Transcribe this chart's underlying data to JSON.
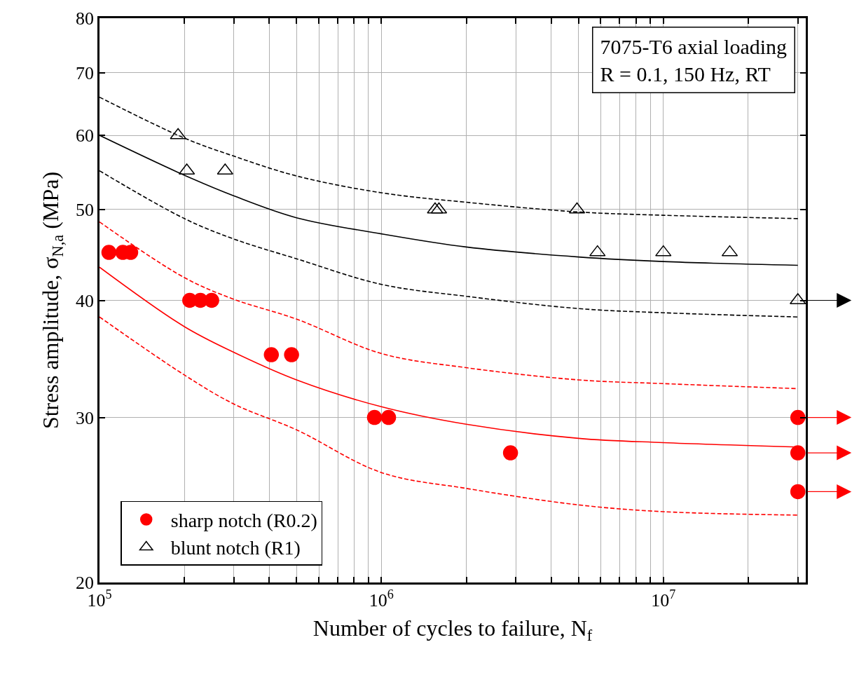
{
  "chart_data": {
    "type": "scatter",
    "xlabel": "Number of cycles to failure, N$_{f}$",
    "ylabel": "Stress amplitude, σ$_{N,a}$ (MPa)",
    "annotations": [
      "7075-T6 axial loading\nR = 0.1, 150 Hz, RT"
    ],
    "log": "xy",
    "xlim": [
      100000,
      32000000
    ],
    "ylim": [
      20,
      80
    ],
    "xticks": [
      {
        "value": 100000,
        "label": "10$^{5}$"
      },
      {
        "value": 200000,
        "label": null
      },
      {
        "value": 300000,
        "label": null
      },
      {
        "value": 400000,
        "label": null
      },
      {
        "value": 500000,
        "label": null
      },
      {
        "value": 600000,
        "label": null
      },
      {
        "value": 700000,
        "label": null
      },
      {
        "value": 800000,
        "label": null
      },
      {
        "value": 900000,
        "label": null
      },
      {
        "value": 1000000,
        "label": "10$^{6}$"
      },
      {
        "value": 2000000,
        "label": null
      },
      {
        "value": 3000000,
        "label": null
      },
      {
        "value": 4000000,
        "label": null
      },
      {
        "value": 5000000,
        "label": null
      },
      {
        "value": 6000000,
        "label": null
      },
      {
        "value": 7000000,
        "label": null
      },
      {
        "value": 8000000,
        "label": null
      },
      {
        "value": 9000000,
        "label": null
      },
      {
        "value": 10000000,
        "label": "10$^{7}$"
      },
      {
        "value": 20000000,
        "label": null
      },
      {
        "value": 30000000,
        "label": null
      }
    ],
    "yticks": [
      20,
      30,
      40,
      50,
      60,
      70,
      80
    ],
    "grid": true,
    "legend": "bottom left",
    "series": [
      {
        "name": "sharp notch (R0.2)",
        "marker": "circle",
        "color": "#ff0000",
        "x": [
          108000,
          121000,
          129000,
          209000,
          228000,
          250000,
          407000,
          480000,
          945000,
          1060000,
          2870000,
          30000000,
          30000000,
          30000000
        ],
        "values": [
          45,
          45,
          45,
          40,
          40,
          40,
          35,
          35,
          30,
          30,
          27.5,
          30,
          27.5,
          25
        ]
      },
      {
        "name": "blunt notch (R1)",
        "marker": "triangle",
        "color": "#000000",
        "x": [
          190000,
          204000,
          279000,
          1550000,
          1600000,
          4940000,
          5840000,
          10000000,
          17200000,
          30000000
        ],
        "values": [
          60,
          55,
          55,
          50,
          50,
          50,
          45,
          45,
          45,
          40
        ]
      },
      {
        "type": "line",
        "line_style": "solid",
        "color": "#000000",
        "x": [
          100000,
          200000,
          300000,
          500000,
          1000000,
          2000000,
          5000000,
          10000000,
          30000000
        ],
        "values": [
          60,
          54.4,
          51.7,
          49.0,
          47.1,
          45.6,
          44.5,
          44.0,
          43.6
        ]
      },
      {
        "type": "line",
        "line_style": "dashed",
        "color": "#000000",
        "x": [
          100000,
          200000,
          300000,
          500000,
          1000000,
          2000000,
          5000000,
          10000000,
          30000000
        ],
        "values": [
          65.9,
          59.6,
          57.0,
          54.3,
          52.1,
          50.9,
          49.7,
          49.3,
          48.9
        ]
      },
      {
        "type": "line",
        "line_style": "dashed",
        "color": "#000000",
        "x": [
          100000,
          200000,
          300000,
          500000,
          1000000,
          2000000,
          5000000,
          10000000,
          30000000
        ],
        "values": [
          55.0,
          48.9,
          46.5,
          44.3,
          41.6,
          40.4,
          39.2,
          38.8,
          38.4
        ]
      },
      {
        "type": "line",
        "line_style": "solid",
        "color": "#ff0000",
        "x": [
          100000,
          200000,
          300000,
          500000,
          1000000,
          2000000,
          5000000,
          10000000,
          30000000
        ],
        "values": [
          43.4,
          37.5,
          35.2,
          32.9,
          30.8,
          29.5,
          28.5,
          28.2,
          27.9
        ]
      },
      {
        "type": "line",
        "line_style": "dashed",
        "color": "#ff0000",
        "x": [
          100000,
          200000,
          300000,
          500000,
          1000000,
          2000000,
          5000000,
          10000000,
          30000000
        ],
        "values": [
          48.5,
          42.3,
          40.1,
          38.2,
          35.1,
          33.9,
          32.9,
          32.6,
          32.2
        ]
      },
      {
        "type": "line",
        "line_style": "dashed",
        "color": "#ff0000",
        "x": [
          100000,
          200000,
          300000,
          500000,
          1000000,
          2000000,
          5000000,
          10000000,
          30000000
        ],
        "values": [
          38.4,
          33.3,
          31.0,
          29.1,
          26.2,
          25.2,
          24.2,
          23.8,
          23.6
        ]
      }
    ]
  }
}
